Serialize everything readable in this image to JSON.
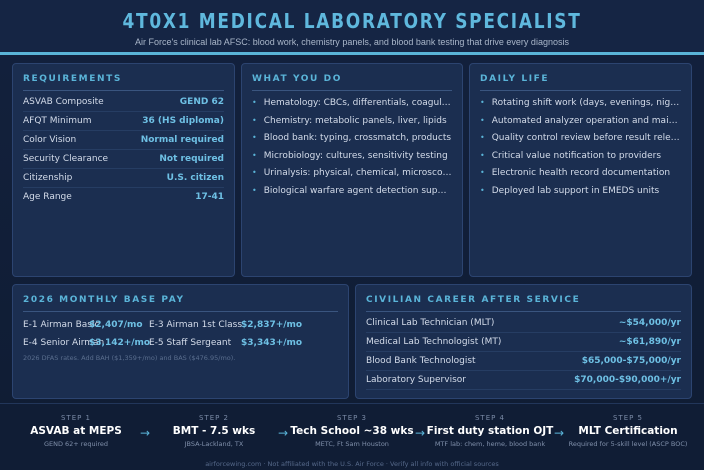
{
  "header": {
    "title": "4T0X1 MEDICAL LABORATORY SPECIALIST",
    "subtitle": "Air Force's clinical lab AFSC: blood work, chemistry panels, and blood bank testing that drive every diagnosis"
  },
  "requirements": {
    "title": "REQUIREMENTS",
    "rows": [
      {
        "label": "ASVAB Composite",
        "value": "GEND 62"
      },
      {
        "label": "AFQT Minimum",
        "value": "36 (HS diploma)"
      },
      {
        "label": "Color Vision",
        "value": "Normal required"
      },
      {
        "label": "Security Clearance",
        "value": "Not required"
      },
      {
        "label": "Citizenship",
        "value": "U.S. citizen"
      },
      {
        "label": "Age Range",
        "value": "17-41"
      }
    ]
  },
  "what_you_do": {
    "title": "WHAT YOU DO",
    "items": [
      "Hematology: CBCs, differentials, coagulation",
      "Chemistry: metabolic panels, liver, lipids",
      "Blood bank: typing, crossmatch, products",
      "Microbiology: cultures, sensitivity testing",
      "Urinalysis: physical, chemical, microscopic",
      "Biological warfare agent detection support"
    ]
  },
  "daily_life": {
    "title": "DAILY LIFE",
    "items": [
      "Rotating shift work (days, evenings, nights)",
      "Automated analyzer operation and maintenance",
      "Quality control review before result release",
      "Critical value notification to providers",
      "Electronic health record documentation",
      "Deployed lab support in EMEDS units"
    ]
  },
  "pay": {
    "title": "2026 MONTHLY BASE PAY",
    "rows": [
      {
        "label": "E-1 Airman Basic",
        "value": "$2,407/mo"
      },
      {
        "label": "E-3 Airman 1st Class",
        "value": "$2,837+/mo"
      },
      {
        "label": "E-4 Senior Airman",
        "value": "$3,142+/mo"
      },
      {
        "label": "E-5 Staff Sergeant",
        "value": "$3,343+/mo"
      }
    ],
    "note": "2026 DFAS rates. Add BAH ($1,359+/mo) and BAS ($476.95/mo)."
  },
  "civilian": {
    "title": "CIVILIAN CAREER AFTER SERVICE",
    "rows": [
      {
        "label": "Clinical Lab Technician (MLT)",
        "value": "~$54,000/yr"
      },
      {
        "label": "Medical Lab Technologist (MT)",
        "value": "~$61,890/yr"
      },
      {
        "label": "Blood Bank Technologist",
        "value": "$65,000-$75,000/yr"
      },
      {
        "label": "Laboratory Supervisor",
        "value": "$70,000-$90,000+/yr"
      }
    ]
  },
  "steps": [
    {
      "label": "STEP 1",
      "title": "ASVAB at MEPS",
      "sub": "GEND 62+ required"
    },
    {
      "label": "STEP 2",
      "title": "BMT - 7.5 wks",
      "sub": "JBSA-Lackland, TX"
    },
    {
      "label": "STEP 3",
      "title": "Tech School ~38 wks",
      "sub": "METC, Ft Sam Houston"
    },
    {
      "label": "STEP 4",
      "title": "First duty station OJT",
      "sub": "MTF lab: chem, heme, blood bank"
    },
    {
      "label": "STEP 5",
      "title": "MLT Certification",
      "sub": "Required for 5-skill level (ASCP BOC)"
    }
  ],
  "arrow": "→",
  "footer": "airforcewing.com · Not affiliated with the U.S. Air Force · Verify all info with official sources",
  "colors": {
    "accent": "#5ab4d8",
    "background": "#13213d",
    "panel": "#1b2e50"
  }
}
